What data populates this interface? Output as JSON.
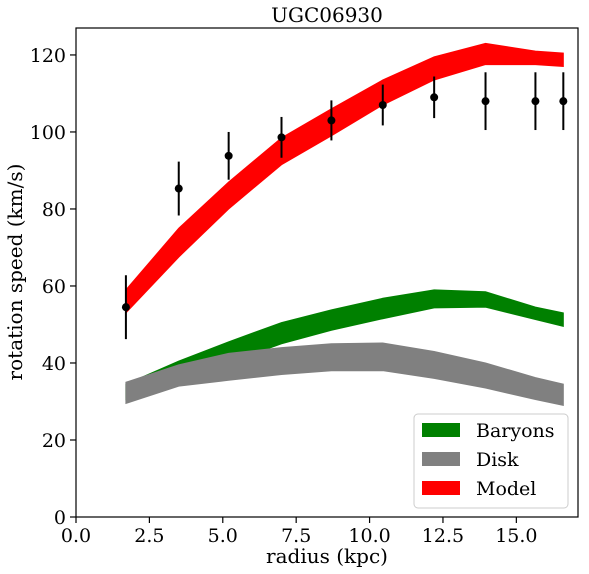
{
  "chart_data": {
    "type": "area",
    "title": "UGC06930",
    "xlabel": "radius (kpc)",
    "ylabel": "rotation speed (km/s)",
    "xlim": [
      0.0,
      17.1
    ],
    "ylim": [
      0,
      127
    ],
    "xticks": [
      0.0,
      2.5,
      5.0,
      7.5,
      10.0,
      12.5,
      15.0
    ],
    "xtick_labels": [
      "0.0",
      "2.5",
      "5.0",
      "7.5",
      "10.0",
      "12.5",
      "15.0"
    ],
    "yticks": [
      0,
      20,
      40,
      60,
      80,
      100,
      120
    ],
    "ytick_labels": [
      "0",
      "20",
      "40",
      "60",
      "80",
      "100",
      "120"
    ],
    "grid": false,
    "legend_position": "lower-right",
    "x": [
      1.7,
      3.5,
      5.2,
      7.0,
      8.7,
      10.45,
      12.2,
      13.95,
      15.65,
      16.6
    ],
    "series": [
      {
        "name": "Baryons",
        "kind": "band",
        "color": "#008000",
        "upper": [
          34.5,
          40.5,
          45.5,
          50.5,
          53.8,
          56.8,
          59.0,
          58.5,
          54.5,
          53.0
        ],
        "lower": [
          30.5,
          35.0,
          40.0,
          45.0,
          48.5,
          51.5,
          54.3,
          54.5,
          51.3,
          49.5
        ]
      },
      {
        "name": "Disk",
        "kind": "band",
        "color": "#808080",
        "upper": [
          35.0,
          39.5,
          42.5,
          44.0,
          45.0,
          45.2,
          43.0,
          40.0,
          36.2,
          34.5
        ],
        "lower": [
          29.5,
          34.0,
          35.5,
          37.0,
          38.0,
          38.0,
          36.0,
          33.5,
          30.5,
          29.0
        ]
      },
      {
        "name": "Model",
        "kind": "band",
        "color": "#ff0000",
        "upper": [
          59.0,
          75.0,
          87.0,
          98.5,
          106.0,
          113.5,
          119.5,
          123.0,
          121.0,
          120.5
        ],
        "lower": [
          53.0,
          67.5,
          80.0,
          91.5,
          99.0,
          107.0,
          113.5,
          117.5,
          117.5,
          117.0
        ]
      }
    ],
    "observations": {
      "color": "#000000",
      "x": [
        1.7,
        3.5,
        5.2,
        7.0,
        8.7,
        10.45,
        12.2,
        13.95,
        15.65,
        16.6
      ],
      "y": [
        54.5,
        85.3,
        93.8,
        98.6,
        103.0,
        107.0,
        109.0,
        108.0,
        108.0,
        108.0
      ],
      "err": [
        8.3,
        7.0,
        6.2,
        5.3,
        5.2,
        5.3,
        5.4,
        7.5,
        7.5,
        7.5
      ]
    }
  }
}
